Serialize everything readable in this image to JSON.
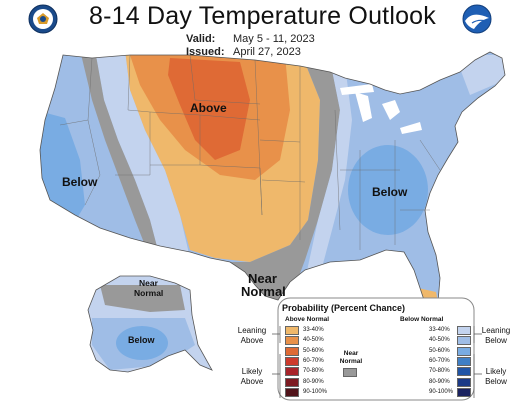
{
  "header": {
    "title": "8-14 Day Temperature Outlook",
    "valid_label": "Valid:",
    "valid_value": "May 5 - 11, 2023",
    "issued_label": "Issued:",
    "issued_value": "April 27, 2023"
  },
  "map_labels": {
    "above": "Above",
    "below_west": "Below",
    "below_east": "Below",
    "near_normal_south_1": "Near",
    "near_normal_south_2": "Normal",
    "alaska_near_1": "Near",
    "alaska_near_2": "Normal",
    "alaska_below": "Below"
  },
  "legend": {
    "title": "Probability (Percent Chance)",
    "above_header": "Above Normal",
    "below_header": "Below Normal",
    "near_header_1": "Near",
    "near_header_2": "Normal",
    "leaning_above_1": "Leaning",
    "leaning_above_2": "Above",
    "likely_above_1": "Likely",
    "likely_above_2": "Above",
    "leaning_below_1": "Leaning",
    "leaning_below_2": "Below",
    "likely_below_1": "Likely",
    "likely_below_2": "Below",
    "above_bins": [
      {
        "label": "33-40%",
        "color": "#efb86b"
      },
      {
        "label": "40-50%",
        "color": "#e8914a"
      },
      {
        "label": "50-60%",
        "color": "#df6a35"
      },
      {
        "label": "60-70%",
        "color": "#cd3a2c"
      },
      {
        "label": "70-80%",
        "color": "#a8242a"
      },
      {
        "label": "80-90%",
        "color": "#7d1b22"
      },
      {
        "label": "90-100%",
        "color": "#50131a"
      }
    ],
    "below_bins": [
      {
        "label": "33-40%",
        "color": "#c3d3ee"
      },
      {
        "label": "40-50%",
        "color": "#9fbde6"
      },
      {
        "label": "50-60%",
        "color": "#79ace3"
      },
      {
        "label": "60-70%",
        "color": "#3f7fc6"
      },
      {
        "label": "70-80%",
        "color": "#2155a6"
      },
      {
        "label": "80-90%",
        "color": "#1c3a87"
      },
      {
        "label": "90-100%",
        "color": "#1a2260"
      }
    ],
    "near_color": "#999999"
  }
}
